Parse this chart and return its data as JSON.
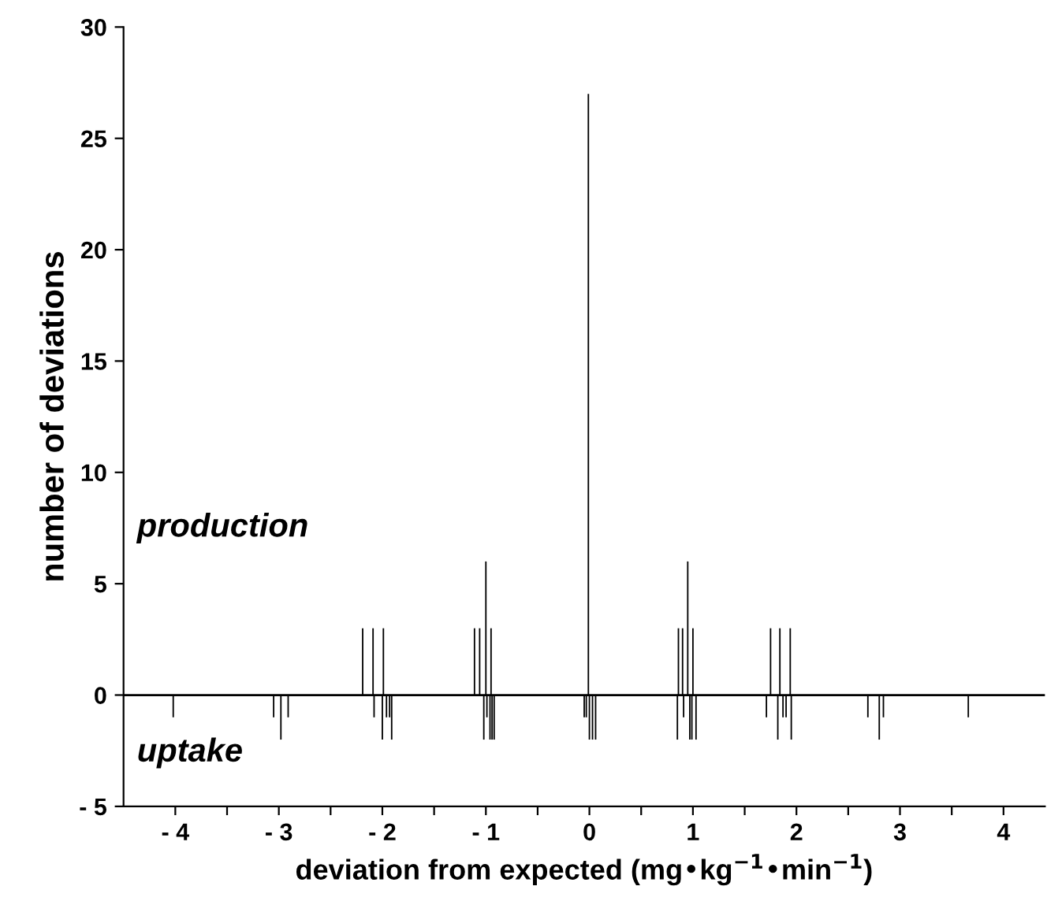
{
  "chart_data": {
    "type": "bar",
    "xlabel": "deviation from expected (mg•kg$^{−1}$•min$^{−1}$)",
    "ylabel": "number of deviations",
    "series": [
      {
        "color": "#000000",
        "x": [
          -4.02,
          -3.05,
          -2.98,
          -2.91,
          -2.19,
          -2.09,
          -2.08,
          -2.0,
          -1.99,
          -1.96,
          -1.93,
          -1.91,
          -1.11,
          -1.06,
          -1.02,
          -1.0,
          -0.99,
          -0.96,
          -0.95,
          -0.94,
          -0.92,
          -0.05,
          -0.03,
          -0.01,
          0.0,
          0.03,
          0.06,
          0.85,
          0.86,
          0.9,
          0.91,
          0.95,
          0.97,
          0.99,
          1.0,
          1.03,
          1.71,
          1.75,
          1.82,
          1.84,
          1.87,
          1.9,
          1.94,
          1.95,
          2.69,
          2.8,
          2.84,
          3.66
        ],
        "values": [
          -1,
          -1,
          -2,
          -1,
          3,
          3,
          -1,
          -2,
          3,
          -1,
          -1,
          -2,
          3,
          3,
          -2,
          6,
          -1,
          -2,
          3,
          -2,
          -2,
          -1,
          -1,
          27,
          -2,
          -2,
          -2,
          -2,
          3,
          3,
          -1,
          6,
          -2,
          -2,
          3,
          -2,
          -1,
          3,
          -2,
          3,
          -1,
          -1,
          3,
          -2,
          -1,
          -2,
          -1,
          -1
        ]
      }
    ],
    "xlim": [
      -4.5,
      4.4
    ],
    "xticks": [
      {
        "value": -4,
        "label": "- 4"
      },
      {
        "value": -3.5,
        "label": null
      },
      {
        "value": -3,
        "label": "- 3"
      },
      {
        "value": -2.5,
        "label": null
      },
      {
        "value": -2,
        "label": "- 2"
      },
      {
        "value": -1.5,
        "label": null
      },
      {
        "value": -1,
        "label": "- 1"
      },
      {
        "value": -0.5,
        "label": null
      },
      0,
      {
        "value": 0.5,
        "label": null
      },
      1,
      {
        "value": 1.5,
        "label": null
      },
      2,
      {
        "value": 2.5,
        "label": null
      },
      3,
      {
        "value": 3.5,
        "label": null
      },
      4
    ],
    "ylim": [
      -5,
      30
    ],
    "yticks": [
      {
        "value": -5,
        "label": "- 5"
      },
      0,
      5,
      10,
      15,
      20,
      25,
      30
    ],
    "ref_lines": [
      {
        "axis": "y",
        "value": 0,
        "color": "#000000"
      }
    ],
    "annotations": [
      "production",
      "uptake"
    ],
    "grid": false,
    "legend": false
  }
}
